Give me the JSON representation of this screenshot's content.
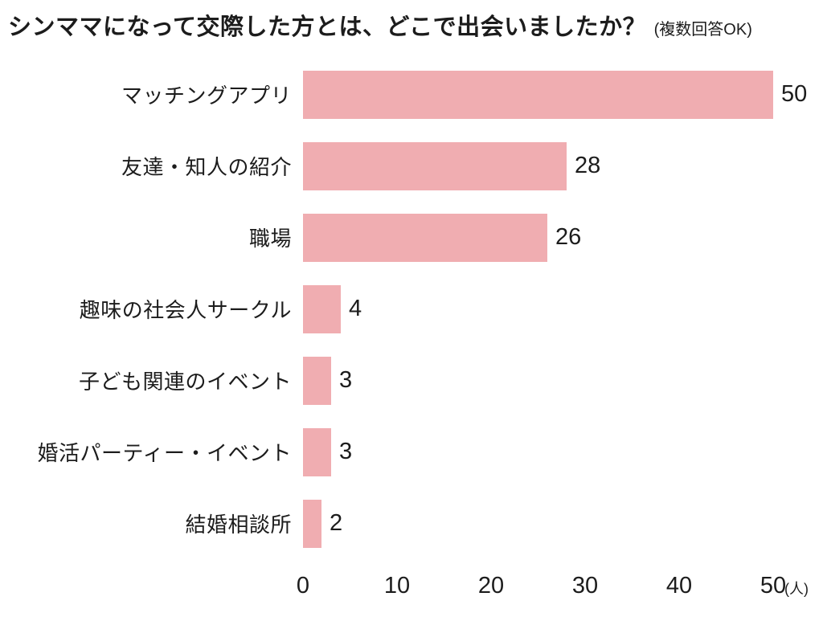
{
  "title": {
    "main": "シンママになって交際した方とは、どこで出会いましたか？",
    "note": "(複数回答OK)"
  },
  "chart_data": {
    "type": "bar",
    "orientation": "horizontal",
    "title": "シンママになって交際した方とは、どこで出会いましたか？",
    "subtitle": "(複数回答OK)",
    "categories": [
      "マッチングアプリ",
      "友達・知人の紹介",
      "職場",
      "趣味の社会人サークル",
      "子ども関連のイベント",
      "婚活パーティー・イベント",
      "結婚相談所"
    ],
    "values": [
      50,
      28,
      26,
      4,
      3,
      3,
      2
    ],
    "value_labels": [
      "50",
      "28",
      "26",
      "4",
      "3",
      "3",
      "2"
    ],
    "xlabel": "",
    "ylabel": "",
    "xlim": [
      0,
      50
    ],
    "x_ticks": [
      0,
      10,
      20,
      30,
      40,
      50
    ],
    "x_tick_labels": [
      "0",
      "10",
      "20",
      "30",
      "40",
      "50"
    ],
    "x_unit": "(人)",
    "grid": false,
    "legend_position": "none",
    "colors": {
      "bar": "#f0adb1",
      "text": "#1c1c1c",
      "background": "#ffffff"
    }
  }
}
